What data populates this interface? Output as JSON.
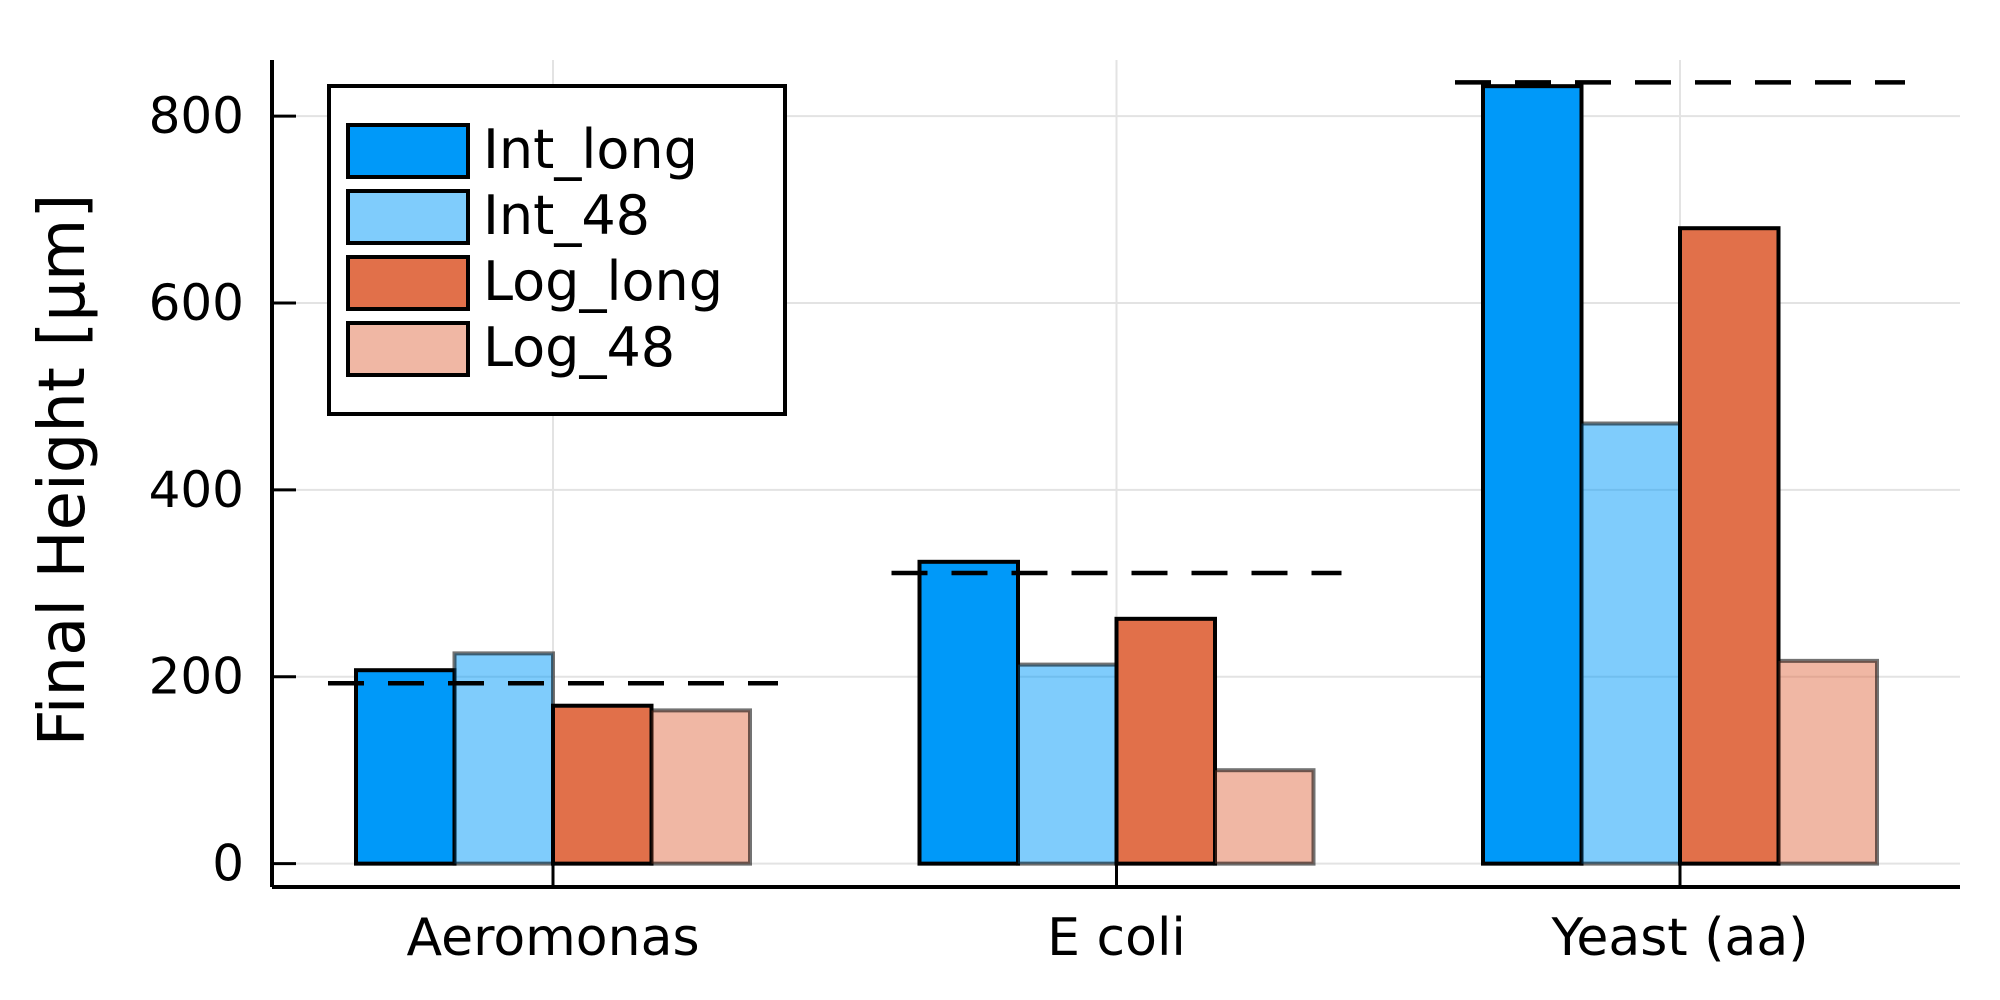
{
  "chart_data": {
    "type": "bar",
    "ylabel": "Final Height [μm]",
    "xlabel": "",
    "categories": [
      "Aeromonas",
      "E coli",
      "Yeast (aa)"
    ],
    "ylim": [
      -25,
      860
    ],
    "yticks": [
      0,
      200,
      400,
      600,
      800
    ],
    "grid": true,
    "legend_position": "top-left",
    "series": [
      {
        "name": "Int_long",
        "values": [
          207,
          323,
          832
        ],
        "color": "#0099f9",
        "opacity": 1.0
      },
      {
        "name": "Int_48",
        "values": [
          225,
          213,
          471
        ],
        "color": "#0099f9",
        "opacity": 0.5
      },
      {
        "name": "Log_long",
        "values": [
          169,
          262,
          680
        ],
        "color": "#e1704a",
        "opacity": 1.0
      },
      {
        "name": "Log_48",
        "values": [
          164,
          100,
          217
        ],
        "color": "#e1704a",
        "opacity": 0.5
      }
    ],
    "reference_lines": [
      {
        "category": "Aeromonas",
        "value": 193
      },
      {
        "category": "E coli",
        "value": 311
      },
      {
        "category": "Yeast (aa)",
        "value": 836
      }
    ]
  }
}
